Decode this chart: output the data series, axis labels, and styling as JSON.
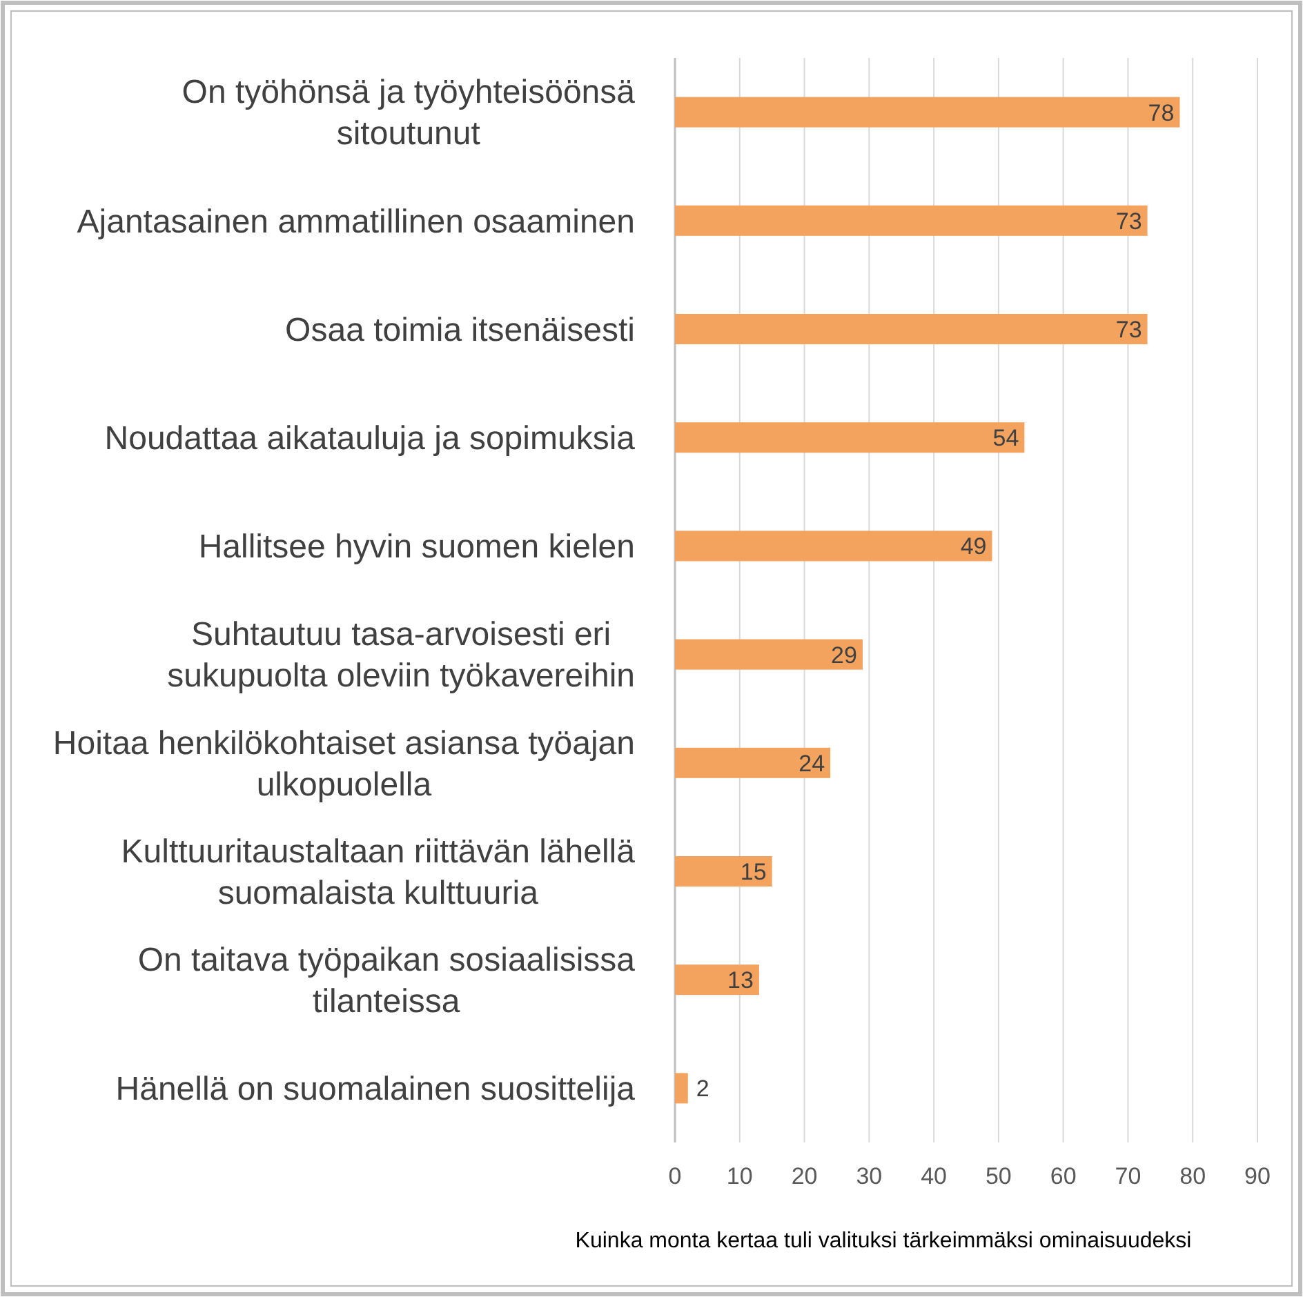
{
  "chart_data": {
    "type": "bar",
    "orientation": "horizontal",
    "xlabel": "Kuinka monta kertaa tuli valituksi tärkeimmäksi ominaisuudeksi",
    "categories": [
      "On työhönsä ja työyhteisöönsä sitoutunut",
      "Ajantasainen ammatillinen osaaminen",
      "Osaa toimia itsenäisesti",
      "Noudattaa aikatauluja ja sopimuksia",
      "Hallitsee hyvin suomen kielen",
      "Suhtautuu tasa-arvoisesti eri sukupuolta oleviin työkavereihin",
      "Hoitaa henkilökohtaiset asiansa työajan ulkopuolella",
      "Kulttuuritaustaltaan riittävän lähellä suomalaista kulttuuria",
      "On taitava työpaikan sosiaalisissa tilanteissa",
      "Hänellä on suomalainen suosittelija"
    ],
    "values": [
      78,
      73,
      73,
      54,
      49,
      29,
      24,
      15,
      13,
      2
    ],
    "color": "#f4a35f",
    "xlim": [
      0,
      90
    ],
    "xticks": [
      0,
      10,
      20,
      30,
      40,
      50,
      60,
      70,
      80,
      90
    ],
    "grid": "x",
    "data_labels": true
  }
}
